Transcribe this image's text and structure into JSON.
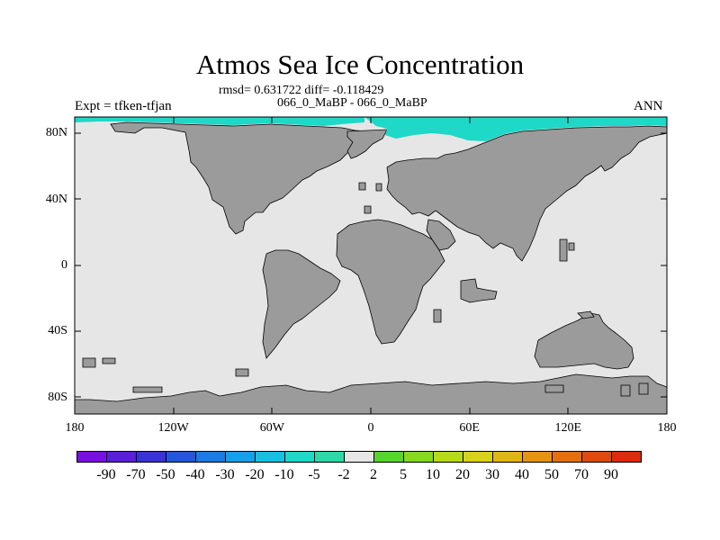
{
  "title": "Atmos Sea Ice Concentration",
  "subtitle_stats": "rmsd= 0.631722 diff= -0.118429",
  "subtitle_comparison": "066_0_MaBP - 066_0_MaBP",
  "experiment_label": "Expt = tfken-tfjan",
  "season_label": "ANN",
  "lat_ticks": [
    {
      "label": "80N",
      "lat": 80
    },
    {
      "label": "40N",
      "lat": 40
    },
    {
      "label": "0",
      "lat": 0
    },
    {
      "label": "40S",
      "lat": -40
    },
    {
      "label": "80S",
      "lat": -80
    }
  ],
  "lon_ticks": [
    {
      "label": "180",
      "lon": -180
    },
    {
      "label": "120W",
      "lon": -120
    },
    {
      "label": "60W",
      "lon": -60
    },
    {
      "label": "0",
      "lon": 0
    },
    {
      "label": "60E",
      "lon": 60
    },
    {
      "label": "120E",
      "lon": 120
    },
    {
      "label": "180",
      "lon": 180
    }
  ],
  "colorbar": {
    "labels": [
      "-90",
      "-70",
      "-50",
      "-40",
      "-30",
      "-20",
      "-10",
      "-5",
      "-2",
      "2",
      "5",
      "10",
      "20",
      "30",
      "40",
      "50",
      "70",
      "90"
    ],
    "colors": [
      "#7a10e0",
      "#5a1fd6",
      "#3a32d2",
      "#2456d8",
      "#1f7ae2",
      "#1a9ee6",
      "#18c0e0",
      "#1ed8c8",
      "#2ed8a8",
      "#e6e6e6",
      "#56d52e",
      "#84da20",
      "#b6da1a",
      "#d8d21a",
      "#e2b516",
      "#e49414",
      "#e27012",
      "#dd4a12",
      "#dd2a10"
    ]
  },
  "colors": {
    "ocean_background": "#e6e6e6",
    "land": "#9b9b9b",
    "sea_ice_change": "#1ed8c8"
  }
}
